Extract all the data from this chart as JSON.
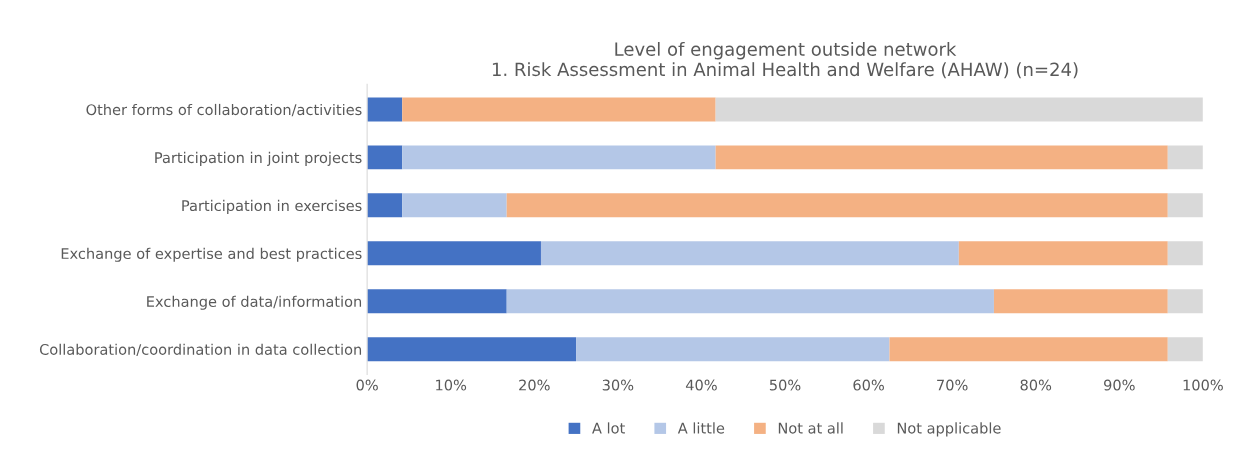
{
  "chart_data": {
    "type": "bar",
    "orientation": "horizontal",
    "stacked": true,
    "title": "Level of engagement outside network\n1. Risk Assessment in Animal Health and Welfare (AHAW) (n=24)",
    "categories": [
      "Other forms of collaboration/activities",
      "Participation in joint projects",
      "Participation in exercises",
      "Exchange of expertise and best practices",
      "Exchange of data/information",
      "Collaboration/coordination in data collection"
    ],
    "series": [
      {
        "name": "A lot",
        "color": "#4472c4",
        "values": [
          4.2,
          4.2,
          4.2,
          20.8,
          16.7,
          25.0
        ]
      },
      {
        "name": "A little",
        "color": "#b4c7e7",
        "values": [
          0,
          37.5,
          12.5,
          50.0,
          58.3,
          37.5
        ]
      },
      {
        "name": "Not at all",
        "color": "#f4b183",
        "values": [
          37.5,
          54.1,
          79.1,
          25.0,
          20.8,
          33.3
        ]
      },
      {
        "name": "Not applicable",
        "color": "#d9d9d9",
        "values": [
          58.3,
          4.2,
          4.2,
          4.2,
          4.2,
          4.2
        ]
      }
    ],
    "xlim": [
      0,
      100
    ],
    "xticks": [
      {
        "value": 0,
        "label": "0%"
      },
      {
        "value": 10,
        "label": "10%"
      },
      {
        "value": 20,
        "label": "20%"
      },
      {
        "value": 30,
        "label": "30%"
      },
      {
        "value": 40,
        "label": "40%"
      },
      {
        "value": 50,
        "label": "50%"
      },
      {
        "value": 60,
        "label": "60%"
      },
      {
        "value": 70,
        "label": "70%"
      },
      {
        "value": 80,
        "label": "80%"
      },
      {
        "value": 90,
        "label": "90%"
      },
      {
        "value": 100,
        "label": "100%"
      }
    ],
    "grid": false,
    "legend": "bottom"
  }
}
